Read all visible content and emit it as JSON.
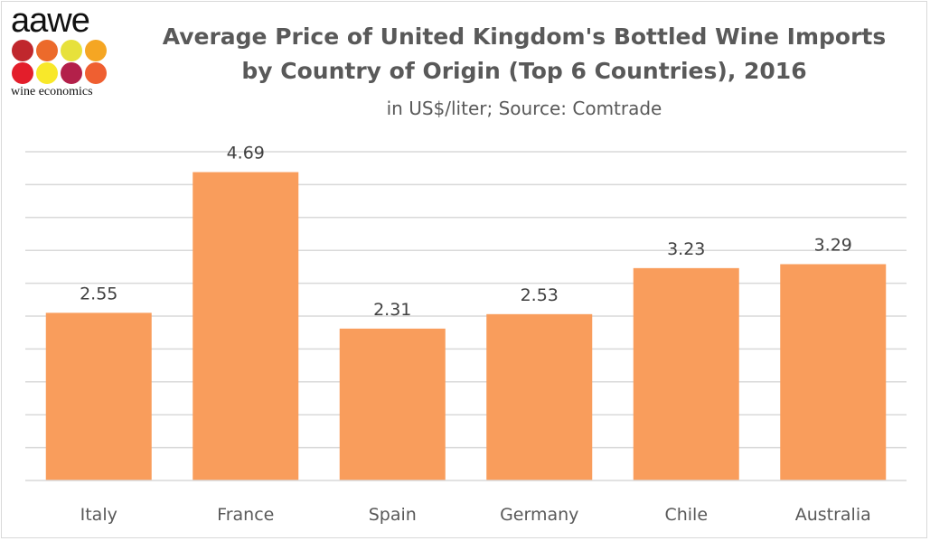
{
  "logo": {
    "wordmark": "aawe",
    "tagline": "wine economics",
    "dot_colors": [
      "#c0272d",
      "#ec6a2b",
      "#e7e13b",
      "#f5a623",
      "#e31e2b",
      "#f8e82a",
      "#b3204a",
      "#ef5f31"
    ]
  },
  "chart_data": {
    "type": "bar",
    "title_line1": "Average Price of United Kingdom's Bottled Wine Imports",
    "title_line2": "by Country of Origin (Top 6 Countries), 2016",
    "subtitle": "in US$/liter; Source: Comtrade",
    "categories": [
      "Italy",
      "France",
      "Spain",
      "Germany",
      "Chile",
      "Australia"
    ],
    "values": [
      2.55,
      4.69,
      2.31,
      2.53,
      3.23,
      3.29
    ],
    "data_labels": [
      "2.55",
      "4.69",
      "2.31",
      "2.53",
      "3.23",
      "3.29"
    ],
    "ylim": [
      0,
      5
    ],
    "grid_step": 0.5,
    "grid": true,
    "y_axis_labels_shown": false,
    "bar_color": "#f99d5c",
    "grid_color": "#d9d9d9"
  }
}
